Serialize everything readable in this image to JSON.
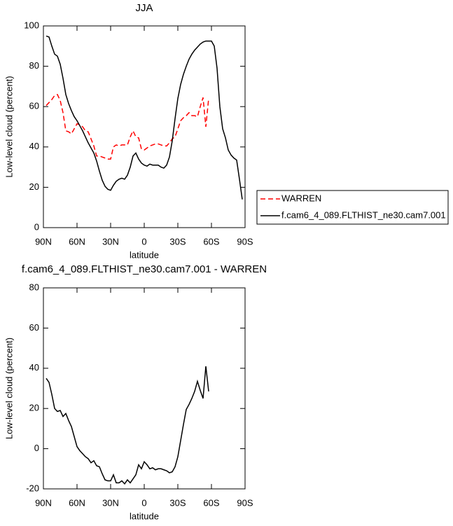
{
  "chart_data": [
    {
      "type": "line",
      "title": "JJA",
      "xlabel": "latitude",
      "ylabel": "Low-level cloud (percent)",
      "x": [
        87.5,
        85,
        82.5,
        80,
        77.5,
        75,
        72.5,
        70,
        67.5,
        65,
        62.5,
        60,
        57.5,
        55,
        52.5,
        50,
        47.5,
        45,
        42.5,
        40,
        37.5,
        35,
        32.5,
        30,
        27.5,
        25,
        22.5,
        20,
        17.5,
        15,
        12.5,
        10,
        7.5,
        5,
        2.5,
        0,
        -2.5,
        -5,
        -7.5,
        -10,
        -12.5,
        -15,
        -17.5,
        -20,
        -22.5,
        -25,
        -27.5,
        -30,
        -32.5,
        -35,
        -37.5,
        -40,
        -42.5,
        -45,
        -47.5,
        -50,
        -52.5,
        -55,
        -57.5,
        -60,
        -62.5,
        -65,
        -67.5,
        -70,
        -72.5,
        -75,
        -77.5,
        -80,
        -82.5,
        -85,
        -87.5
      ],
      "series": [
        {
          "name": "WARREN",
          "color": "#ff0000",
          "dashed": true,
          "values": [
            60.5,
            62,
            63.5,
            65.5,
            66,
            63,
            57,
            48,
            47.5,
            46.5,
            49,
            51.5,
            51,
            50,
            48,
            47.5,
            44,
            40.5,
            35.5,
            35.5,
            35,
            34.5,
            34,
            34,
            40,
            41,
            40.5,
            41,
            41,
            41,
            45,
            48,
            45,
            44.5,
            39,
            38.5,
            39.5,
            40.5,
            41,
            41.5,
            41.5,
            41,
            40.5,
            40.5,
            42,
            44,
            45,
            49,
            53,
            54.5,
            55.5,
            57,
            55.5,
            55.5,
            55,
            60,
            64.5,
            50,
            64,
            null,
            null,
            null,
            null,
            null,
            null,
            null,
            null,
            null,
            null,
            null,
            null
          ]
        },
        {
          "name": "f.cam6_4_089.FLTHIST_ne30.cam7.001",
          "color": "#000000",
          "dashed": false,
          "values": [
            95,
            94.5,
            90,
            86,
            85,
            81,
            74,
            66,
            61.5,
            58,
            55,
            53,
            50.5,
            48,
            45,
            42,
            39.5,
            37,
            33,
            28,
            23.5,
            20.5,
            19,
            18.5,
            21,
            23,
            24,
            24.5,
            24,
            26,
            30,
            35.5,
            37,
            34,
            32,
            31,
            30.5,
            31.5,
            31,
            31,
            31,
            30,
            29.5,
            31,
            35,
            43,
            54,
            64,
            71,
            76,
            80,
            83.5,
            86,
            88,
            89.5,
            91,
            92,
            92.5,
            92.5,
            92.5,
            90,
            79,
            60,
            49,
            44.5,
            38.5,
            36,
            34.5,
            33.5,
            24,
            14
          ]
        }
      ],
      "xlim": [
        90,
        -90
      ],
      "xticks": [
        {
          "value": 90,
          "label": "90N"
        },
        {
          "value": 60,
          "label": "60N"
        },
        {
          "value": 30,
          "label": "30N"
        },
        0,
        {
          "value": -30,
          "label": "30S"
        },
        {
          "value": -60,
          "label": "60S"
        },
        {
          "value": -90,
          "label": "90S"
        }
      ],
      "ylim": [
        0,
        100
      ],
      "yticks": [
        0,
        20,
        40,
        60,
        80,
        100
      ],
      "legend": "right"
    },
    {
      "type": "line",
      "title": "f.cam6_4_089.FLTHIST_ne30.cam7.001 - WARREN",
      "xlabel": "latitude",
      "ylabel": "Low-level cloud (percent)",
      "x": [
        87.5,
        85,
        82.5,
        80,
        77.5,
        75,
        72.5,
        70,
        67.5,
        65,
        62.5,
        60,
        57.5,
        55,
        52.5,
        50,
        47.5,
        45,
        42.5,
        40,
        37.5,
        35,
        32.5,
        30,
        27.5,
        25,
        22.5,
        20,
        17.5,
        15,
        12.5,
        10,
        7.5,
        5,
        2.5,
        0,
        -2.5,
        -5,
        -7.5,
        -10,
        -12.5,
        -15,
        -17.5,
        -20,
        -22.5,
        -25,
        -27.5,
        -30,
        -32.5,
        -35,
        -37.5,
        -40,
        -42.5,
        -45,
        -47.5,
        -50,
        -52.5,
        -55,
        -57.5
      ],
      "series": [
        {
          "color": "#000000",
          "dashed": false,
          "values": [
            35,
            33,
            27,
            20,
            18.5,
            19,
            16,
            17.5,
            14,
            11,
            6,
            1,
            -1,
            -2.5,
            -4,
            -5,
            -7,
            -6,
            -8.5,
            -9,
            -12.5,
            -15.5,
            -16,
            -16,
            -13,
            -17,
            -17,
            -16,
            -17.5,
            -15.5,
            -17,
            -15,
            -13,
            -8,
            -10,
            -6.5,
            -8,
            -10,
            -9.5,
            -10.5,
            -10,
            -10,
            -10.5,
            -11,
            -12,
            -11.5,
            -9,
            -4,
            4,
            12,
            19.5,
            22,
            25,
            28.5,
            33.5,
            29,
            25,
            41,
            28.5
          ]
        }
      ],
      "xlim": [
        90,
        -90
      ],
      "xticks": [
        {
          "value": 90,
          "label": "90N"
        },
        {
          "value": 60,
          "label": "60N"
        },
        {
          "value": 30,
          "label": "30N"
        },
        0,
        {
          "value": -30,
          "label": "30S"
        },
        {
          "value": -60,
          "label": "60S"
        },
        {
          "value": -90,
          "label": "90S"
        }
      ],
      "ylim": [
        -20,
        80
      ],
      "yticks": [
        -20,
        0,
        20,
        40,
        60,
        80
      ]
    }
  ]
}
